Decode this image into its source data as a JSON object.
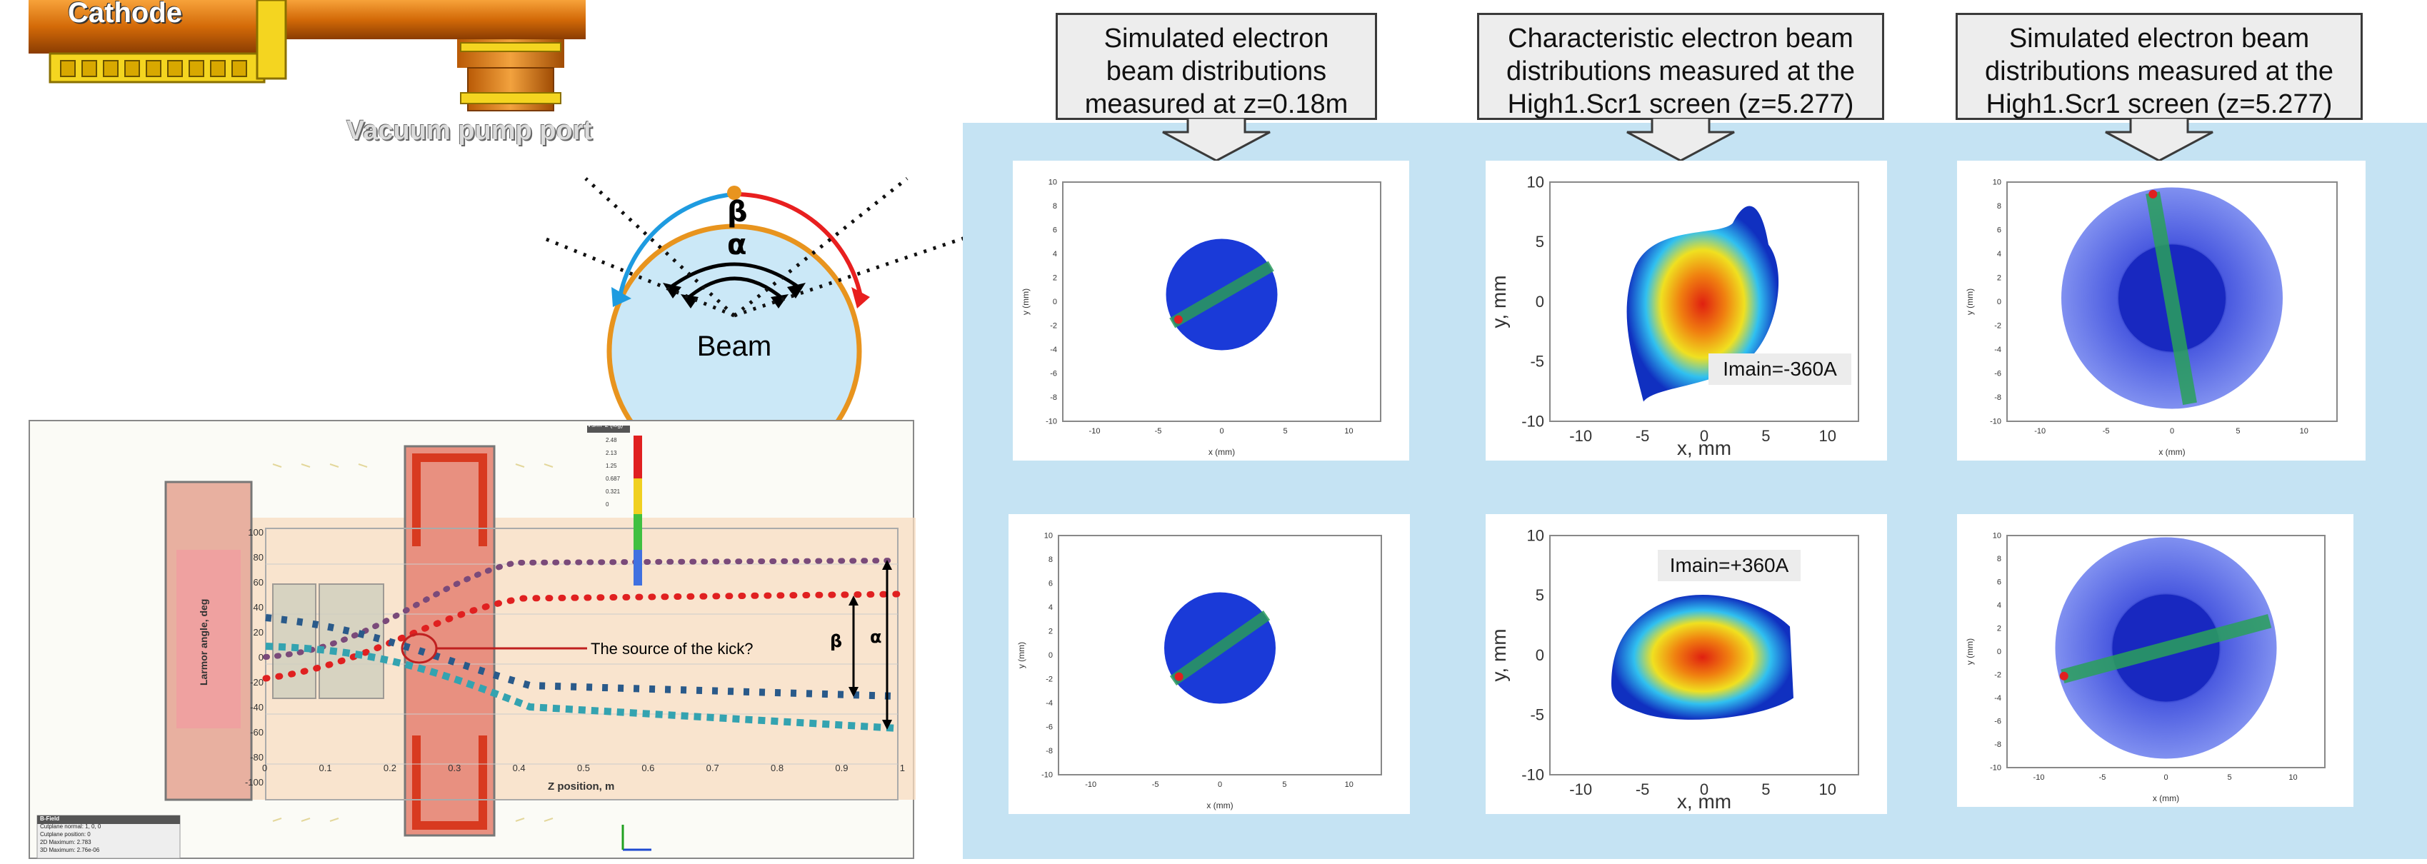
{
  "top_left": {
    "cathode_label": "Cathode",
    "vacuum_port_label": "Vacuum pump port"
  },
  "beam_diagram": {
    "beta": "β",
    "alpha": "α",
    "beam_label": "Beam"
  },
  "callouts": [
    {
      "text": "Simulated electron beam distributions measured at z=0.18m"
    },
    {
      "text": "Characteristic electron beam distributions measured at the High1.Scr1 screen (z=5.277)"
    },
    {
      "text": "Simulated electron beam distributions measured at the High1.Scr1 screen (z=5.277)"
    }
  ],
  "larmor_plot": {
    "ylabel": "Larmor angle, deg",
    "xlabel": "Z position, m",
    "yticks": [
      "100",
      "80",
      "60",
      "40",
      "20",
      "0",
      "-20",
      "-40",
      "-60",
      "-80",
      "-100"
    ],
    "xticks": [
      "0",
      "0.1",
      "0.2",
      "0.3",
      "0.4",
      "0.5",
      "0.6",
      "0.7",
      "0.8",
      "0.9",
      "1"
    ],
    "annotation": "The source of the kick?",
    "beta": "β",
    "alpha": "α",
    "colorbar_title": "Vs/m^2 (log)",
    "colorbar_ticks": [
      "2.48",
      "2.13",
      "1.25",
      "0.687",
      "0.321",
      "0"
    ],
    "legend": {
      "title": "B-Field",
      "rows": [
        "Cutplane normal:  1, 0, 0",
        "Cutplane position:  0",
        "2D Maximum:  2.783",
        "3D Maximum:  2.76e-06"
      ]
    }
  },
  "beam_plots": {
    "sim_axis": {
      "xlabel": "x (mm)",
      "ylabel": "y (mm)",
      "ticks": [
        "10",
        "8",
        "6",
        "4",
        "2",
        "0",
        "-2",
        "-4",
        "-6",
        "-8",
        "-10"
      ],
      "xticks": [
        "-10",
        "-5",
        "0",
        "5",
        "10"
      ]
    },
    "meas_axis": {
      "xlabel": "x, mm",
      "ylabel": "y, mm",
      "ticks": [
        "10",
        "5",
        "0",
        "-5",
        "-10"
      ],
      "xticks": [
        "-10",
        "-5",
        "0",
        "5",
        "10"
      ]
    },
    "imain_neg": "Imain=-360A",
    "imain_pos": "Imain=+360A"
  },
  "colors": {
    "panel_bg": "#c5e3f3",
    "copper": "#e07a10",
    "beam_fill": "#cbe8f7",
    "beam_outline": "#e8941e",
    "arc_red": "#e81f1f",
    "arc_blue": "#1e9be0",
    "series_red": "#e02020",
    "series_purple": "#7a4a7a",
    "series_cyan": "#34a3b0"
  }
}
